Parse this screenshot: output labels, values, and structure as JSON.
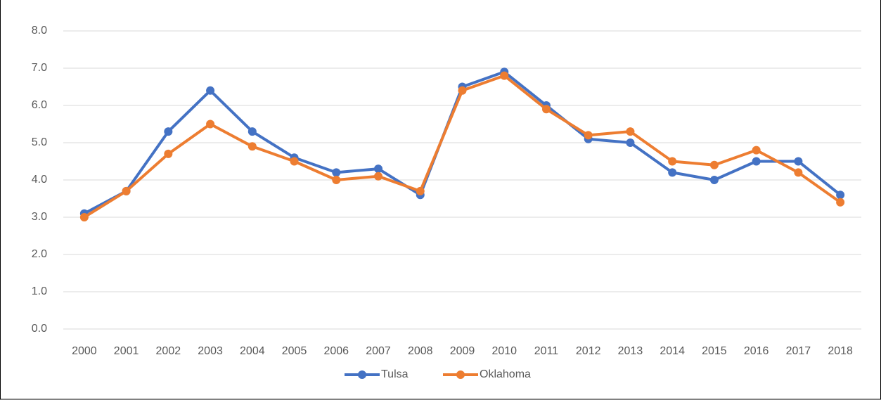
{
  "chart_data": {
    "type": "line",
    "categories": [
      "2000",
      "2001",
      "2002",
      "2003",
      "2004",
      "2005",
      "2006",
      "2007",
      "2008",
      "2009",
      "2010",
      "2011",
      "2012",
      "2013",
      "2014",
      "2015",
      "2016",
      "2017",
      "2018"
    ],
    "series": [
      {
        "name": "Tulsa",
        "color": "#4472c4",
        "values": [
          3.1,
          3.7,
          5.3,
          6.4,
          5.3,
          4.6,
          4.2,
          4.3,
          3.6,
          6.5,
          6.9,
          6.0,
          5.1,
          5.0,
          4.2,
          4.0,
          4.5,
          4.5,
          3.6
        ]
      },
      {
        "name": "Oklahoma",
        "color": "#ed7d31",
        "values": [
          3.0,
          3.7,
          4.7,
          5.5,
          4.9,
          4.5,
          4.0,
          4.1,
          3.7,
          6.4,
          6.8,
          5.9,
          5.2,
          5.3,
          4.5,
          4.4,
          4.8,
          4.2,
          3.4
        ]
      }
    ],
    "ylim": [
      0,
      8
    ],
    "yticks": [
      {
        "value": 0,
        "label": "0.0"
      },
      {
        "value": 1,
        "label": "1.0"
      },
      {
        "value": 2,
        "label": "2.0"
      },
      {
        "value": 3,
        "label": "3.0"
      },
      {
        "value": 4,
        "label": "4.0"
      },
      {
        "value": 5,
        "label": "5.0"
      },
      {
        "value": 6,
        "label": "6.0"
      },
      {
        "value": 7,
        "label": "7.0"
      },
      {
        "value": 8,
        "label": "8.0"
      }
    ],
    "grid": true,
    "legend": "bottom"
  }
}
